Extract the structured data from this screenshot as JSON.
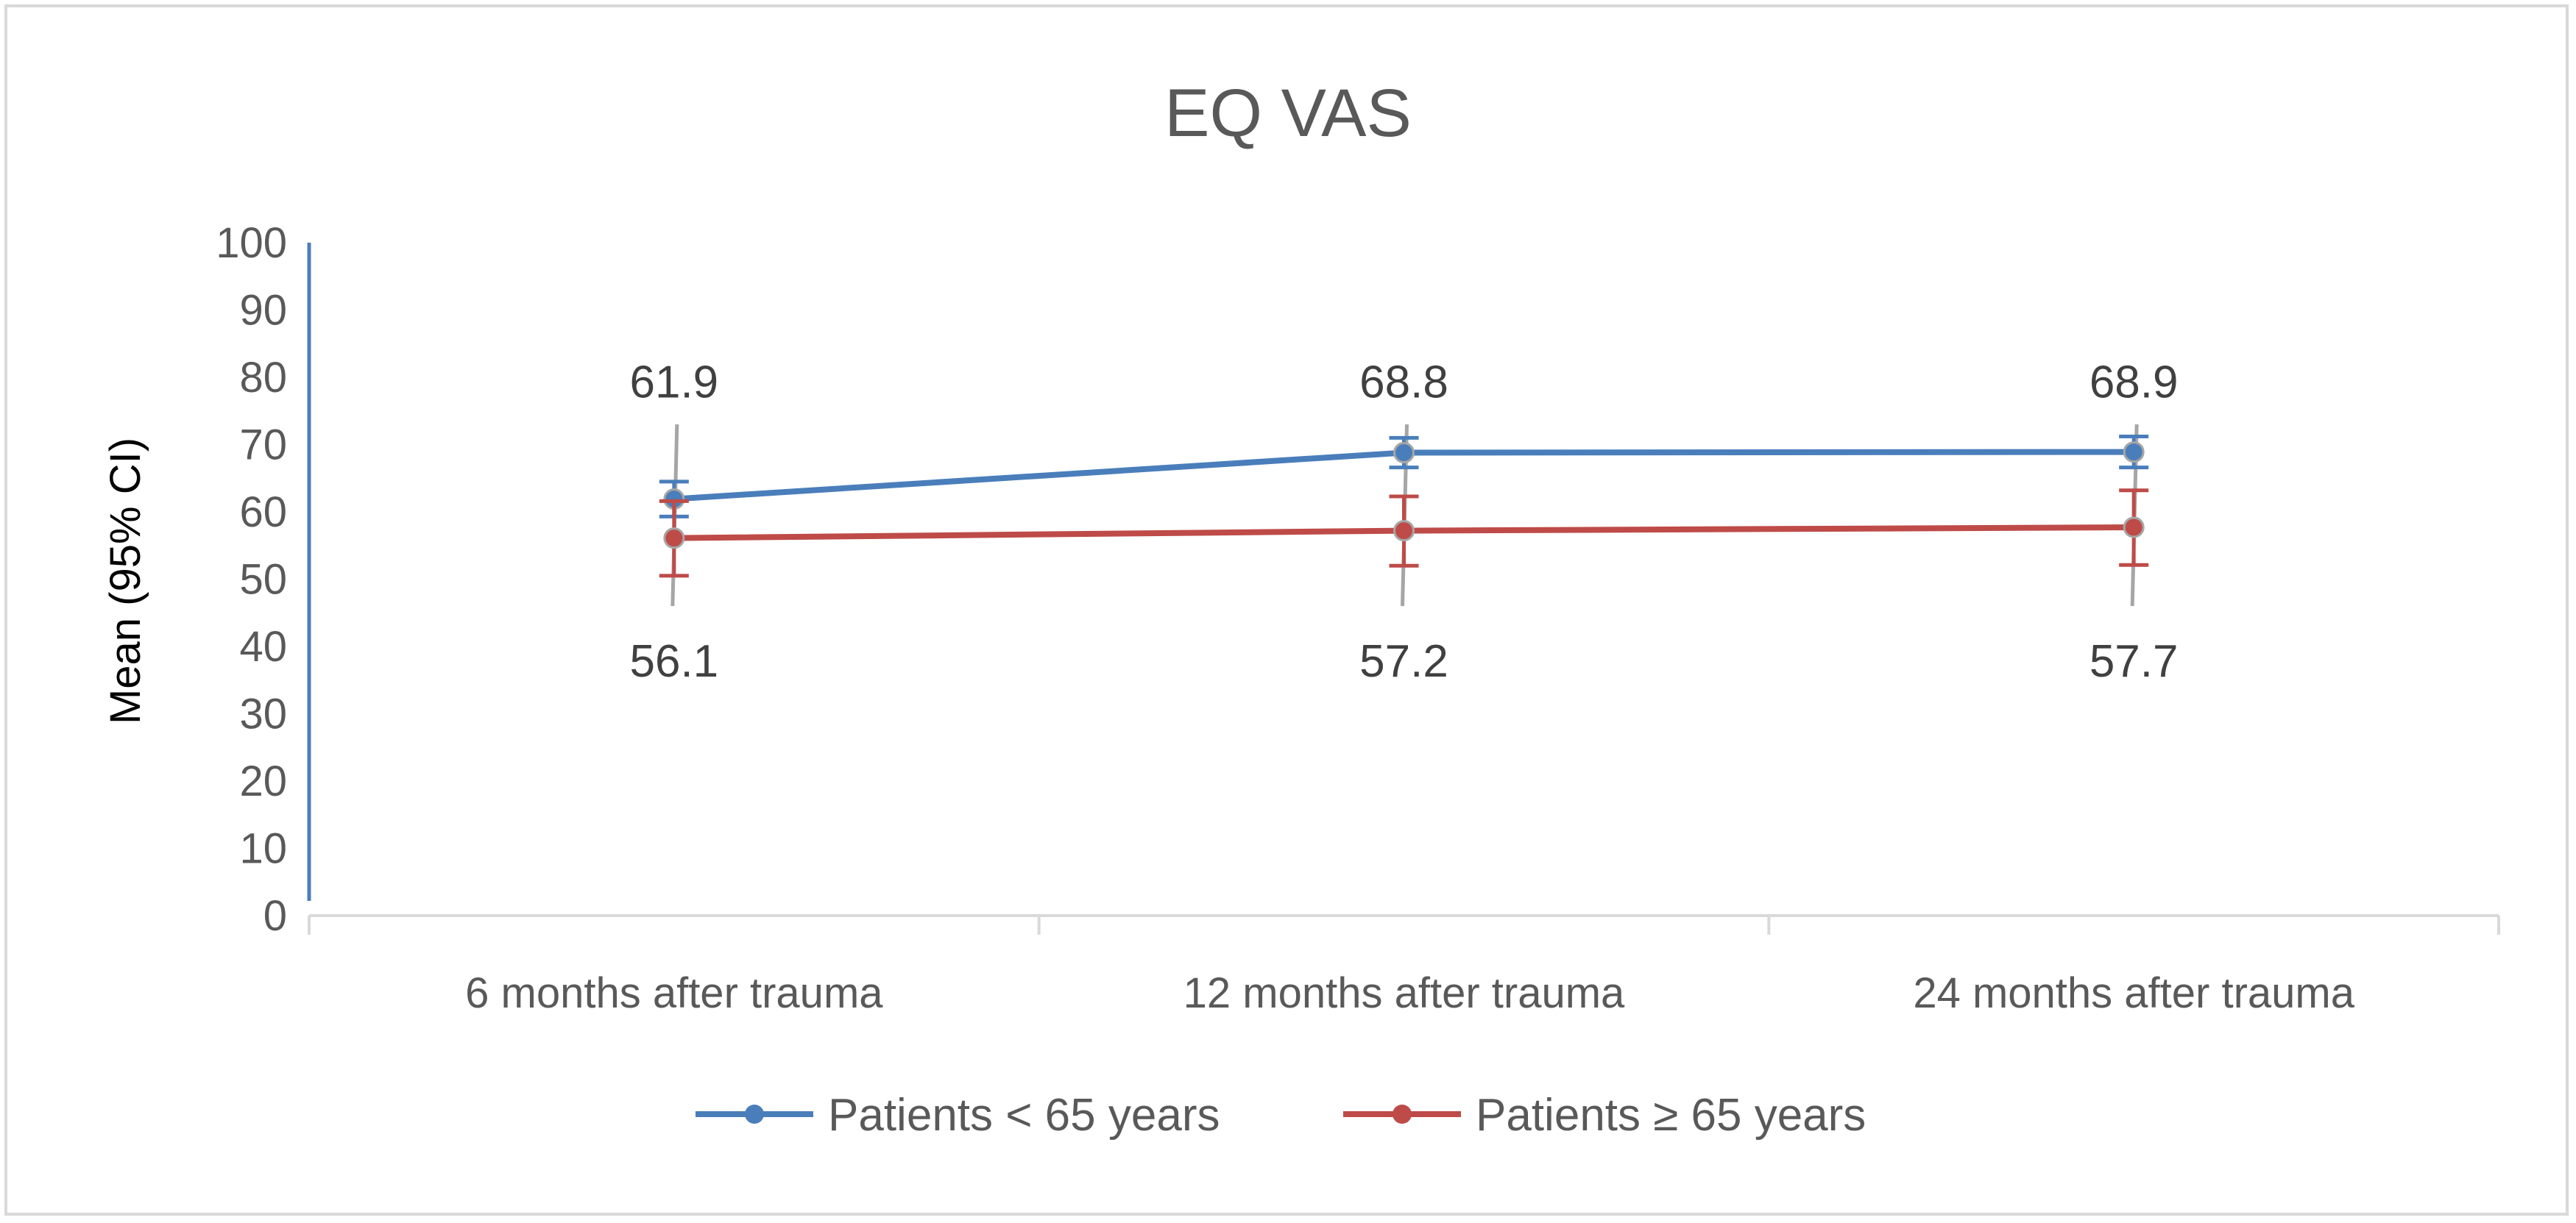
{
  "chart_data": {
    "type": "line",
    "title": "EQ VAS",
    "xlabel": "",
    "ylabel": "Mean (95% CI)",
    "ylim": [
      0,
      100
    ],
    "yticks": [
      0,
      10,
      20,
      30,
      40,
      50,
      60,
      70,
      80,
      90,
      100
    ],
    "categories": [
      "6 months after trauma",
      "12 months after trauma",
      "24 months after trauma"
    ],
    "series": [
      {
        "name": "Patients < 65 years",
        "color": "#4a7ebb",
        "values": [
          61.9,
          68.8,
          68.9
        ],
        "ci_lower": [
          59.3,
          66.6,
          66.6
        ],
        "ci_upper": [
          64.5,
          71.0,
          71.2
        ],
        "labels": [
          "61.9",
          "68.8",
          "68.9"
        ]
      },
      {
        "name": "Patients ≥ 65 years",
        "color": "#be4b48",
        "values": [
          56.1,
          57.2,
          57.7
        ],
        "ci_lower": [
          50.5,
          52.0,
          52.1
        ],
        "ci_upper": [
          61.6,
          62.3,
          63.2
        ],
        "labels": [
          "56.1",
          "57.2",
          "57.7"
        ]
      }
    ],
    "legend_position": "bottom",
    "grid": false
  }
}
